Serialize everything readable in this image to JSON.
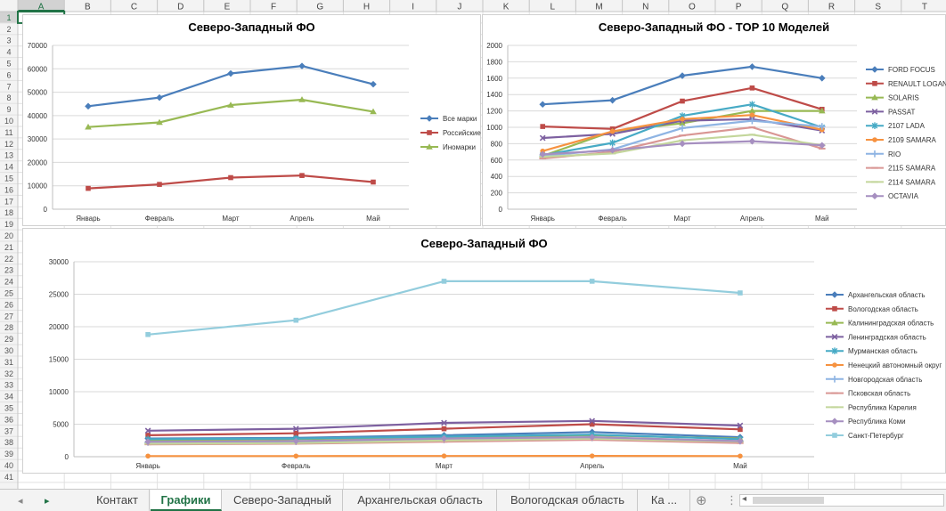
{
  "columns": [
    "A",
    "B",
    "C",
    "D",
    "E",
    "F",
    "G",
    "H",
    "I",
    "J",
    "K",
    "L",
    "M",
    "N",
    "O",
    "P",
    "Q",
    "R",
    "S",
    "T"
  ],
  "selected_column": "A",
  "selected_row": "1",
  "rows": [
    "1",
    "2",
    "3",
    "4",
    "5",
    "6",
    "7",
    "8",
    "9",
    "10",
    "11",
    "12",
    "13",
    "14",
    "15",
    "16",
    "17",
    "18",
    "19",
    "20",
    "21",
    "22",
    "23",
    "24",
    "25",
    "26",
    "27",
    "28",
    "29",
    "30",
    "31",
    "32",
    "33",
    "34",
    "35",
    "36",
    "37",
    "38",
    "39",
    "40",
    "41"
  ],
  "tabs": {
    "nav_prev": "◂",
    "nav_next": "▸",
    "items": [
      "Контакт",
      "Графики",
      "Северо-Западный",
      "Архангельская область",
      "Вологодская область",
      "Ка ..."
    ],
    "active": "Графики",
    "add": "⊕",
    "more": "⋮",
    "scroll_left": "◂"
  },
  "chart_data": [
    {
      "type": "line",
      "title": "Северо-Западный ФО",
      "categories": [
        "Январь",
        "Февраль",
        "Март",
        "Апрель",
        "Май"
      ],
      "ylim": [
        0,
        70000
      ],
      "yticks": [
        0,
        10000,
        20000,
        30000,
        40000,
        50000,
        60000,
        70000
      ],
      "grid": true,
      "legend": "right",
      "series": [
        {
          "name": "Все марки",
          "color": "#4a7ebb",
          "marker": "diamond",
          "values": [
            44000,
            47700,
            58000,
            61200,
            53400
          ]
        },
        {
          "name": "Российские",
          "color": "#be4b48",
          "marker": "square",
          "values": [
            8900,
            10600,
            13500,
            14400,
            11600
          ]
        },
        {
          "name": "Иномарки",
          "color": "#98b954",
          "marker": "triangle",
          "values": [
            35100,
            37100,
            44500,
            46800,
            41700
          ]
        }
      ]
    },
    {
      "type": "line",
      "title": "Северо-Западный ФО - TOP 10 Моделей",
      "categories": [
        "Январь",
        "Февраль",
        "Март",
        "Апрель",
        "Май"
      ],
      "ylim": [
        0,
        2000
      ],
      "yticks": [
        0,
        200,
        400,
        600,
        800,
        1000,
        1200,
        1400,
        1600,
        1800,
        2000
      ],
      "grid": true,
      "legend": "right",
      "series": [
        {
          "name": "FORD FOCUS",
          "color": "#4a7ebb",
          "marker": "diamond",
          "values": [
            1280,
            1330,
            1630,
            1740,
            1600
          ]
        },
        {
          "name": "RENAULT LOGAN",
          "color": "#be4b48",
          "marker": "square",
          "values": [
            1010,
            980,
            1320,
            1480,
            1220
          ]
        },
        {
          "name": "SOLARIS",
          "color": "#98b954",
          "marker": "triangle",
          "values": [
            650,
            950,
            1050,
            1200,
            1200
          ]
        },
        {
          "name": "PASSAT",
          "color": "#7d60a0",
          "marker": "x",
          "values": [
            870,
            920,
            1080,
            1100,
            960
          ]
        },
        {
          "name": "2107 LADA",
          "color": "#46aac5",
          "marker": "star",
          "values": [
            660,
            810,
            1140,
            1280,
            1000
          ]
        },
        {
          "name": "2109 SAMARA",
          "color": "#f69240",
          "marker": "circle",
          "values": [
            710,
            950,
            1100,
            1150,
            970
          ]
        },
        {
          "name": "RIO",
          "color": "#8eb4e3",
          "marker": "plus",
          "values": [
            650,
            730,
            990,
            1080,
            1010
          ]
        },
        {
          "name": "2115 SAMARA",
          "color": "#d99694",
          "marker": "dash",
          "values": [
            620,
            700,
            900,
            1000,
            740
          ]
        },
        {
          "name": "2114 SAMARA",
          "color": "#c3d69b",
          "marker": "dash",
          "values": [
            640,
            680,
            840,
            910,
            780
          ]
        },
        {
          "name": "OCTAVIA",
          "color": "#a68fc0",
          "marker": "diamond",
          "values": [
            670,
            720,
            800,
            830,
            780
          ]
        }
      ]
    },
    {
      "type": "line",
      "title": "Северо-Западный ФО",
      "categories": [
        "Январь",
        "Февраль",
        "Март",
        "Апрель",
        "Май"
      ],
      "ylim": [
        0,
        30000
      ],
      "yticks": [
        0,
        5000,
        10000,
        15000,
        20000,
        25000,
        30000
      ],
      "grid": true,
      "legend": "right",
      "series": [
        {
          "name": "Архангельская область",
          "color": "#4a7ebb",
          "marker": "diamond",
          "values": [
            2800,
            2900,
            3300,
            3800,
            3000
          ]
        },
        {
          "name": "Вологодская область",
          "color": "#be4b48",
          "marker": "square",
          "values": [
            3300,
            3600,
            4300,
            5000,
            4200
          ]
        },
        {
          "name": "Калининградская область",
          "color": "#98b954",
          "marker": "triangle",
          "values": [
            2500,
            2700,
            3000,
            3300,
            2800
          ]
        },
        {
          "name": "Ленинградская область",
          "color": "#7d60a0",
          "marker": "x",
          "values": [
            4000,
            4300,
            5200,
            5500,
            4800
          ]
        },
        {
          "name": "Мурманская область",
          "color": "#46aac5",
          "marker": "star",
          "values": [
            2700,
            2800,
            3100,
            3400,
            2700
          ]
        },
        {
          "name": "Ненецкий автономный округ",
          "color": "#f69240",
          "marker": "circle",
          "values": [
            100,
            100,
            110,
            120,
            100
          ]
        },
        {
          "name": "Новгородская область",
          "color": "#8eb4e3",
          "marker": "plus",
          "values": [
            2200,
            2300,
            2600,
            2900,
            2400
          ]
        },
        {
          "name": "Псковская область",
          "color": "#d99694",
          "marker": "dash",
          "values": [
            1900,
            2000,
            2300,
            2600,
            2100
          ]
        },
        {
          "name": "Республика Карелия",
          "color": "#c3d69b",
          "marker": "dash",
          "values": [
            2000,
            2100,
            2500,
            2800,
            2300
          ]
        },
        {
          "name": "Республика Коми",
          "color": "#a68fc0",
          "marker": "diamond",
          "values": [
            2300,
            2400,
            2800,
            3000,
            2400
          ]
        },
        {
          "name": "Санкт-Петербург",
          "color": "#93cddd",
          "marker": "square",
          "values": [
            18800,
            21000,
            27000,
            27000,
            25200
          ]
        }
      ]
    }
  ]
}
